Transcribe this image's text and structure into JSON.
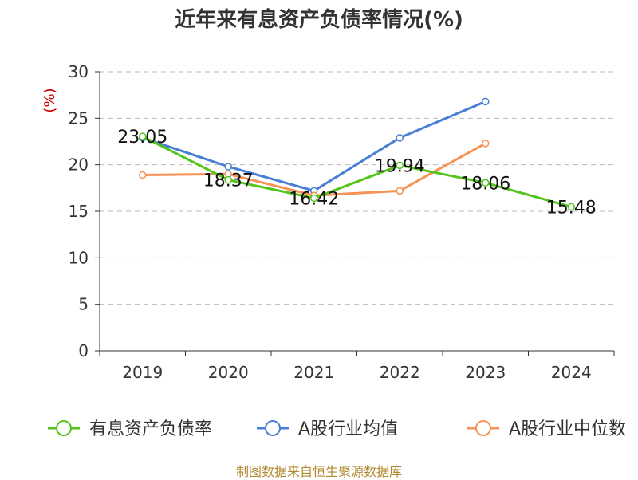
{
  "chart_data": {
    "type": "line",
    "title": "近年来有息资产负债率情况(%)",
    "ylabel": "(%)",
    "xlabel": "",
    "categories": [
      "2019",
      "2020",
      "2021",
      "2022",
      "2023",
      "2024"
    ],
    "ylim": [
      0,
      30
    ],
    "yticks": [
      0,
      5,
      10,
      15,
      20,
      25,
      30
    ],
    "grid": true,
    "legend_position": "bottom",
    "series": [
      {
        "name": "有息资产负债率",
        "color": "#52c41a",
        "values": [
          23.05,
          18.37,
          16.42,
          19.94,
          18.06,
          15.48
        ],
        "labels": [
          "23.05",
          "18.37",
          "16.42",
          "19.94",
          "18.06",
          "15.48"
        ]
      },
      {
        "name": "A股行业均值",
        "color": "#4a7fd6",
        "values": [
          22.9,
          19.8,
          17.2,
          22.9,
          26.8,
          null
        ]
      },
      {
        "name": "A股行业中位数",
        "color": "#f79256",
        "values": [
          18.9,
          19.0,
          16.7,
          17.2,
          22.3,
          null
        ]
      }
    ],
    "source": "制图数据来自恒生聚源数据库"
  }
}
